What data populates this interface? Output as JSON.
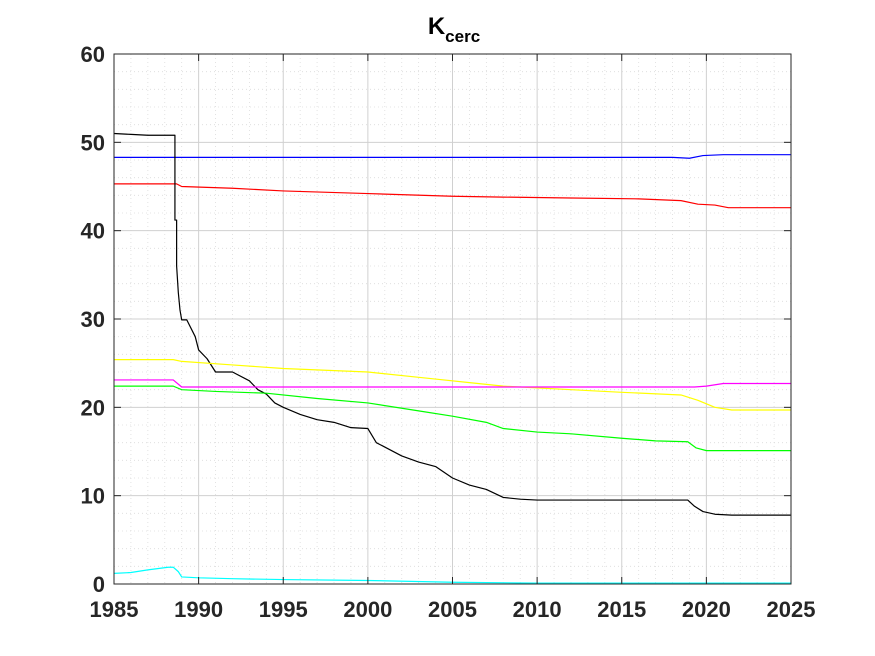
{
  "chart_data": {
    "type": "line",
    "title": "K",
    "title_subscript": "cerc",
    "xlabel": "",
    "ylabel": "",
    "xlim": [
      1985,
      2025
    ],
    "ylim": [
      0,
      60
    ],
    "xticks": [
      1985,
      1990,
      1995,
      2000,
      2005,
      2010,
      2015,
      2020,
      2025
    ],
    "yticks": [
      0,
      10,
      20,
      30,
      40,
      50,
      60
    ],
    "x_tick_labels": [
      "1985",
      "1990",
      "1995",
      "2000",
      "2005",
      "2010",
      "2015",
      "2020",
      "2025"
    ],
    "y_tick_labels": [
      "0",
      "10",
      "20",
      "30",
      "40",
      "50",
      "60"
    ],
    "grid": true,
    "minor_grid": true,
    "legend": "none",
    "series": [
      {
        "color": "#0000ff",
        "x": [
          1985,
          1990,
          1995,
          2000,
          2005,
          2010,
          2015,
          2018,
          2019,
          2019.8,
          2021,
          2025
        ],
        "y": [
          48.3,
          48.3,
          48.3,
          48.3,
          48.3,
          48.3,
          48.3,
          48.3,
          48.2,
          48.5,
          48.6,
          48.6
        ]
      },
      {
        "color": "#ff0000",
        "x": [
          1985,
          1988.7,
          1989,
          1992,
          1995,
          2000,
          2005,
          2008,
          2012,
          2016,
          2018.5,
          2019.5,
          2020.5,
          2021.3,
          2025
        ],
        "y": [
          45.3,
          45.3,
          45.0,
          44.8,
          44.5,
          44.2,
          43.9,
          43.8,
          43.7,
          43.6,
          43.4,
          43.0,
          42.9,
          42.6,
          42.6
        ]
      },
      {
        "color": "#000000",
        "x": [
          1985,
          1986,
          1987,
          1988.6,
          1988.6,
          1988.7,
          1988.7,
          1988.8,
          1988.9,
          1989,
          1989.3,
          1989.8,
          1990,
          1990.5,
          1991,
          1991.5,
          1992,
          1993,
          1993.5,
          1994,
          1994.5,
          1995,
          1996,
          1997,
          1998,
          1999,
          2000,
          2000.5,
          2001,
          2002,
          2003,
          2004,
          2005,
          2006,
          2007,
          2008,
          2009,
          2010,
          2012,
          2015,
          2017,
          2018.9,
          2019.3,
          2019.8,
          2020.5,
          2021.5,
          2025
        ],
        "y": [
          51.0,
          50.9,
          50.8,
          50.8,
          41.2,
          41.2,
          36.0,
          33.0,
          31.0,
          29.9,
          29.9,
          28.0,
          26.5,
          25.5,
          24.0,
          24.0,
          24.0,
          23.0,
          22.0,
          21.5,
          20.5,
          20.0,
          19.2,
          18.6,
          18.3,
          17.7,
          17.6,
          16.0,
          15.5,
          14.5,
          13.8,
          13.3,
          12.0,
          11.2,
          10.7,
          9.8,
          9.6,
          9.5,
          9.5,
          9.5,
          9.5,
          9.5,
          8.8,
          8.2,
          7.9,
          7.8,
          7.8
        ]
      },
      {
        "color": "#ffff00",
        "x": [
          1985,
          1988.5,
          1989,
          1992,
          1995,
          2000,
          2003,
          2006,
          2008,
          2010,
          2012,
          2015,
          2018.5,
          2019.5,
          2020.5,
          2021.5,
          2025
        ],
        "y": [
          25.4,
          25.4,
          25.2,
          24.8,
          24.4,
          24.0,
          23.4,
          22.8,
          22.4,
          22.2,
          22.0,
          21.7,
          21.4,
          20.8,
          20.0,
          19.7,
          19.7
        ]
      },
      {
        "color": "#ff00ff",
        "x": [
          1985,
          1988.5,
          1989,
          1990,
          2000,
          2010,
          2015,
          2019.3,
          2020,
          2021,
          2025
        ],
        "y": [
          23.1,
          23.1,
          22.3,
          22.3,
          22.3,
          22.3,
          22.3,
          22.3,
          22.4,
          22.7,
          22.7
        ]
      },
      {
        "color": "#00ff00",
        "x": [
          1985,
          1988.5,
          1989,
          1991,
          1994,
          1997,
          2000,
          2003,
          2005,
          2007,
          2008,
          2010,
          2012,
          2015,
          2017,
          2018.9,
          2019.4,
          2020,
          2025
        ],
        "y": [
          22.4,
          22.4,
          22.0,
          21.8,
          21.6,
          21.0,
          20.5,
          19.6,
          19.0,
          18.3,
          17.6,
          17.2,
          17.0,
          16.5,
          16.2,
          16.1,
          15.4,
          15.1,
          15.1
        ]
      },
      {
        "color": "#00ffff",
        "x": [
          1985,
          1986,
          1987,
          1988.2,
          1988.5,
          1988.8,
          1989,
          1990,
          1992,
          1995,
          2000,
          2005,
          2010,
          2015,
          2020,
          2025
        ],
        "y": [
          1.2,
          1.3,
          1.6,
          1.9,
          1.9,
          1.4,
          0.8,
          0.7,
          0.6,
          0.5,
          0.4,
          0.2,
          0.1,
          0.1,
          0.1,
          0.1
        ]
      }
    ]
  }
}
